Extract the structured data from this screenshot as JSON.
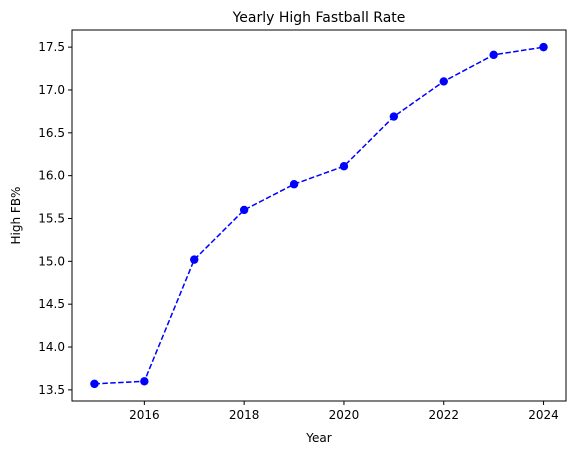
{
  "chart_data": {
    "type": "line",
    "title": "Yearly High Fastball Rate",
    "xlabel": "Year",
    "ylabel": "High FB%",
    "x": [
      2015,
      2016,
      2017,
      2018,
      2019,
      2020,
      2021,
      2022,
      2023,
      2024
    ],
    "series": [
      {
        "values": [
          13.57,
          13.6,
          15.02,
          15.6,
          15.9,
          16.11,
          16.69,
          17.1,
          17.41,
          17.5
        ],
        "color": "#0000ff",
        "line_style": "dashed",
        "marker": "circle"
      }
    ],
    "xlim": [
      2014.55,
      2024.45
    ],
    "ylim": [
      13.37,
      17.7
    ],
    "x_ticks": [
      "2016",
      "2018",
      "2020",
      "2022",
      "2024"
    ],
    "y_ticks": [
      "13.5",
      "14.0",
      "14.5",
      "15.0",
      "15.5",
      "16.0",
      "16.5",
      "17.0",
      "17.5"
    ],
    "grid": false,
    "legend": "none"
  }
}
